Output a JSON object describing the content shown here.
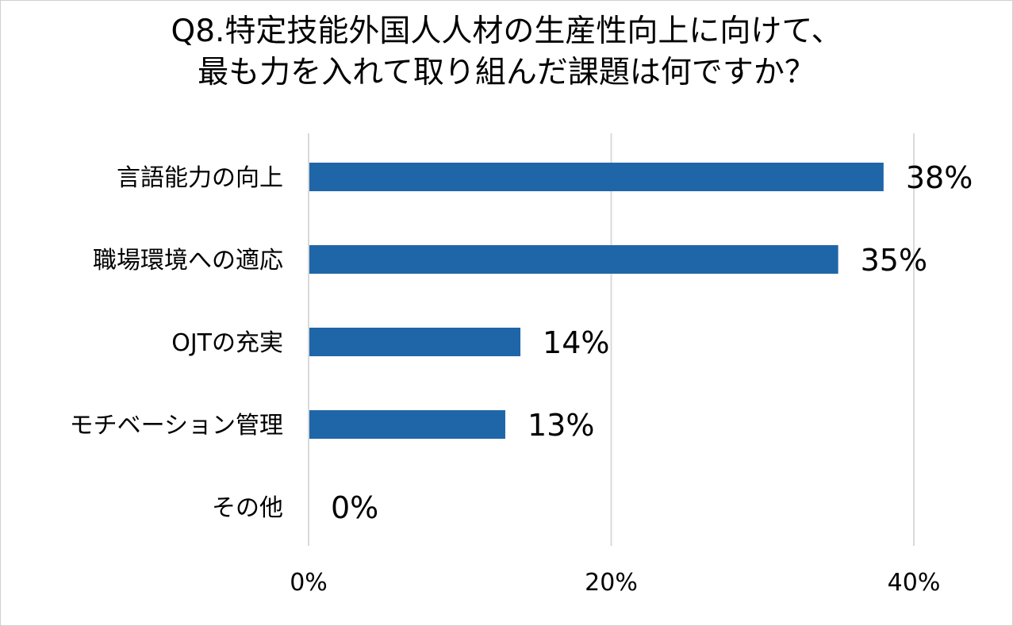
{
  "chart_data": {
    "type": "bar",
    "orientation": "horizontal",
    "title": [
      "Q8.特定技能外国人人材の生産性向上に向けて、",
      "最も力を入れて取り組んだ課題は何ですか？"
    ],
    "categories": [
      "言語能力の向上",
      "職場環境への適応",
      "OJTの充実",
      "モチベーション管理",
      "その他"
    ],
    "values": [
      38,
      35,
      14,
      13,
      0
    ],
    "value_labels": [
      "38%",
      "35%",
      "14%",
      "13%",
      "0%"
    ],
    "xlim": [
      0,
      40
    ],
    "x_ticks": [
      0,
      20,
      40
    ],
    "x_tick_labels": [
      "0%",
      "20%",
      "40%"
    ],
    "grid": true,
    "bar_color": "#1f66a8",
    "grid_color": "#d9d9d9"
  }
}
